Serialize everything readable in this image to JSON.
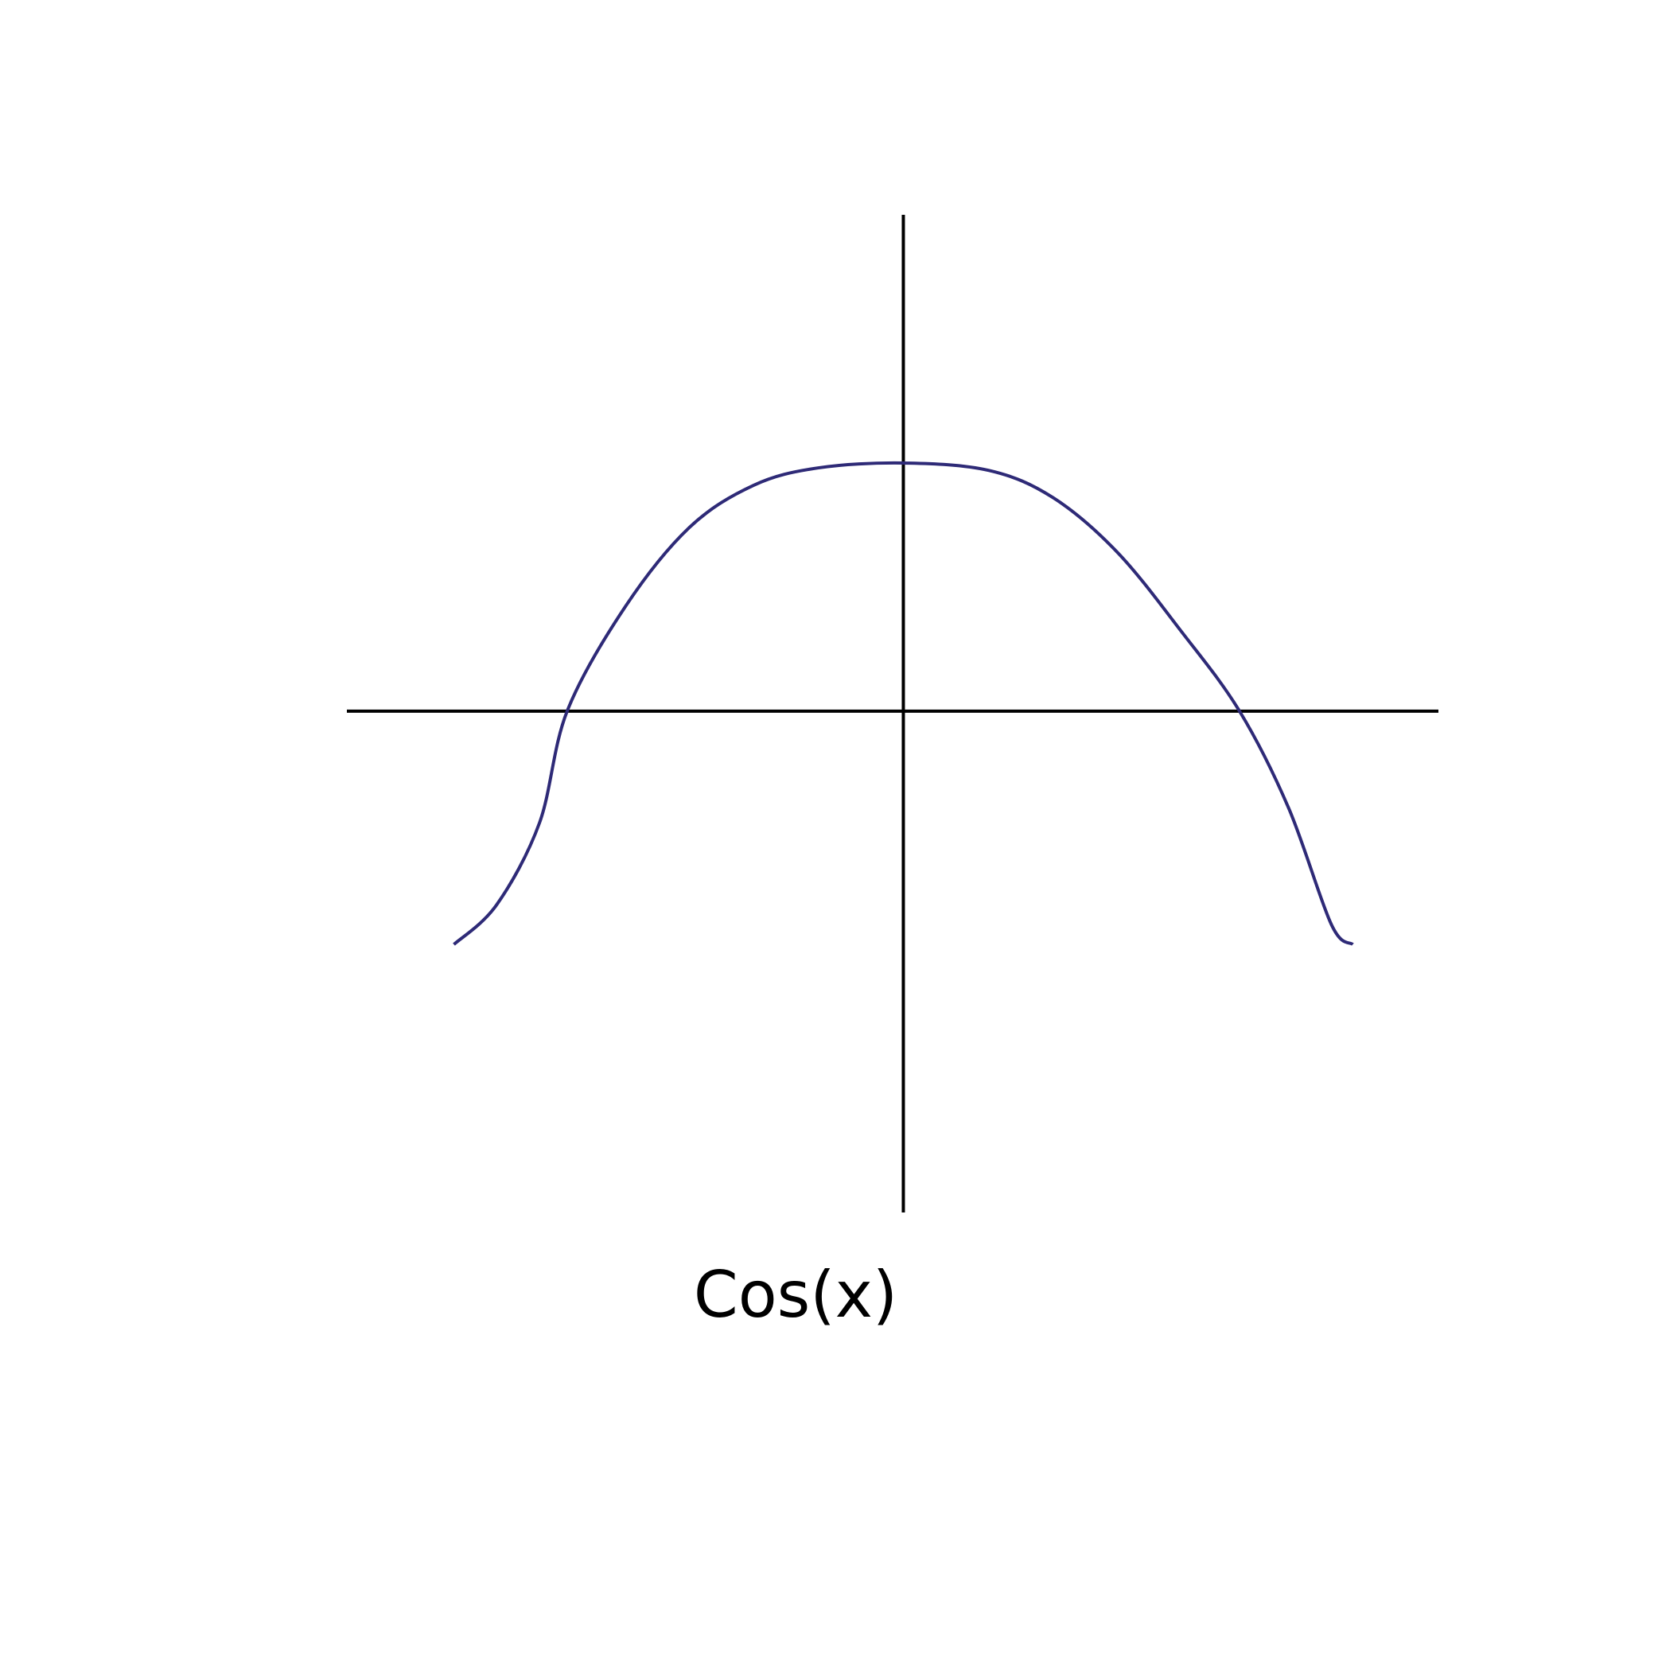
{
  "chart_data": {
    "type": "line",
    "function": "cos(x)",
    "caption": "Cos(x)",
    "xlim": [
      -2.6,
      2.5
    ],
    "ylim": [
      -2.02,
      2.0
    ],
    "axes_cross_at": [
      0,
      0
    ],
    "grid": false,
    "ticks": false,
    "series": [
      {
        "x": [
          -2.1,
          -1.9,
          -1.7,
          -1.5708,
          -1.3,
          -1.0,
          -0.7,
          -0.4,
          0,
          0.4,
          0.7,
          1.0,
          1.3,
          1.5708,
          1.8,
          2.0,
          2.1
        ],
        "y": [
          -0.94,
          -0.78,
          -0.45,
          0.0,
          0.42,
          0.74,
          0.91,
          0.98,
          1.0,
          0.97,
          0.86,
          0.64,
          0.32,
          0.0,
          -0.39,
          -0.86,
          -0.94
        ],
        "color": "#2e2a77"
      }
    ]
  }
}
